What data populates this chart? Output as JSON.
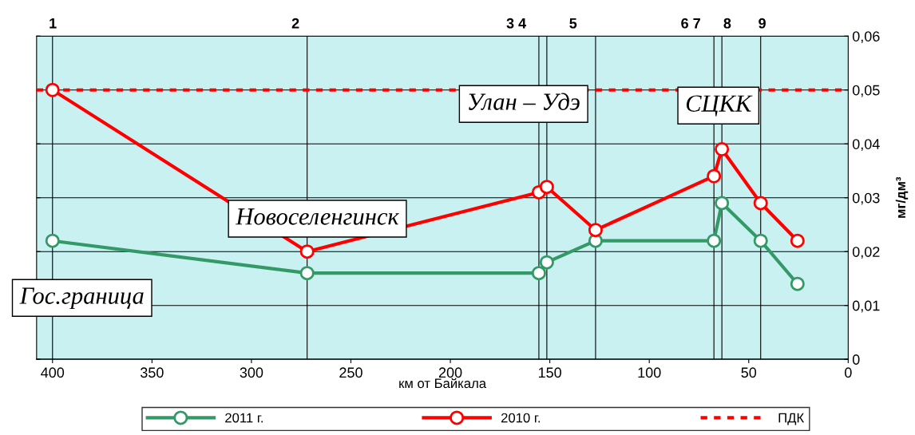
{
  "chart_data": {
    "type": "line",
    "xlabel": "км от Байкала",
    "ylabel": "мг/дм³",
    "x": [
      400,
      272,
      155.5,
      151.5,
      127,
      67.5,
      63.5,
      44,
      25.5
    ],
    "series": [
      {
        "name": "2011 г.",
        "color": "#339966",
        "values": [
          0.022,
          0.016,
          0.016,
          0.018,
          0.022,
          0.022,
          0.029,
          0.022,
          0.014
        ]
      },
      {
        "name": "2010 г.",
        "color": "#ff0000",
        "values": [
          0.05,
          0.02,
          0.031,
          0.032,
          0.024,
          0.034,
          0.039,
          0.029,
          0.022
        ]
      }
    ],
    "marker": "circle",
    "xlim": [
      408,
      0
    ],
    "xticks": [
      400,
      350,
      300,
      250,
      200,
      150,
      100,
      50,
      0
    ],
    "ylim": [
      0,
      0.06
    ],
    "yticks": [
      {
        "value": 0,
        "label": "0"
      },
      {
        "value": 0.01,
        "label": "0,01"
      },
      {
        "value": 0.02,
        "label": "0,02"
      },
      {
        "value": 0.03,
        "label": "0,03"
      },
      {
        "value": 0.04,
        "label": "0,04"
      },
      {
        "value": 0.05,
        "label": "0,05"
      },
      {
        "value": 0.06,
        "label": "0,06"
      }
    ],
    "ref_lines": [
      {
        "axis": "y",
        "value": 0.05,
        "label": "ПДК",
        "color": "#ff0000",
        "line_style": "dashed"
      },
      {
        "axis": "x",
        "value": 400,
        "color": "#000000"
      },
      {
        "axis": "x",
        "value": 272,
        "color": "#000000"
      },
      {
        "axis": "x",
        "value": 155.5,
        "color": "#000000"
      },
      {
        "axis": "x",
        "value": 151.5,
        "color": "#000000"
      },
      {
        "axis": "x",
        "value": 127,
        "color": "#000000"
      },
      {
        "axis": "x",
        "value": 67.5,
        "color": "#000000"
      },
      {
        "axis": "x",
        "value": 63.5,
        "color": "#000000"
      },
      {
        "axis": "x",
        "value": 44,
        "color": "#000000"
      }
    ],
    "annotations": [
      "Гос.граница",
      "Новоселенгинск",
      "Улан – Удэ",
      "СЦКК",
      "1",
      "2",
      "3 4",
      "5",
      "6 7",
      "8",
      "9"
    ],
    "grid": "y",
    "legend": "bottom"
  }
}
